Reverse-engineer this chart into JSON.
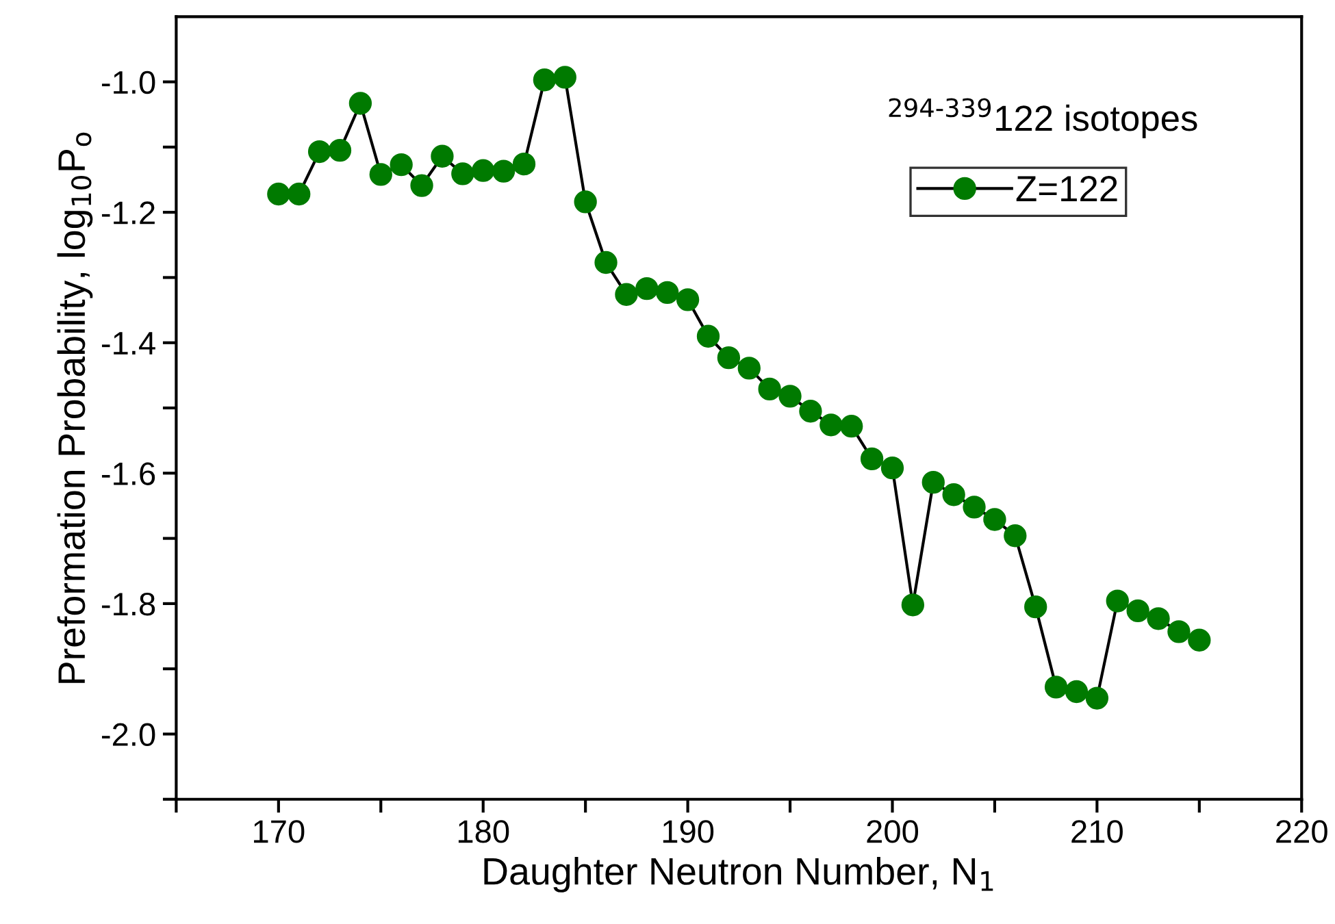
{
  "chart_data": {
    "type": "line",
    "xlabel": "Daughter Neutron Number, N$_{1}$",
    "ylabel": "Preformation Probability, log$_{10}$P$_{o}$",
    "annotations": [
      "$^{294-339}$122 isotopes"
    ],
    "x": [
      170,
      171,
      172,
      173,
      174,
      175,
      176,
      177,
      178,
      179,
      180,
      181,
      182,
      183,
      184,
      185,
      186,
      187,
      188,
      189,
      190,
      191,
      192,
      193,
      194,
      195,
      196,
      197,
      198,
      199,
      200,
      201,
      202,
      203,
      204,
      205,
      206,
      207,
      208,
      209,
      210,
      211,
      212,
      213,
      214,
      215
    ],
    "series": [
      {
        "name": "Z=122",
        "color": "#007a00",
        "values": [
          -1.172,
          -1.172,
          -1.107,
          -1.105,
          -1.033,
          -1.142,
          -1.127,
          -1.159,
          -1.114,
          -1.141,
          -1.136,
          -1.137,
          -1.126,
          -0.997,
          -0.993,
          -1.184,
          -1.277,
          -1.326,
          -1.317,
          -1.323,
          -1.334,
          -1.39,
          -1.423,
          -1.439,
          -1.471,
          -1.482,
          -1.505,
          -1.526,
          -1.528,
          -1.578,
          -1.592,
          -1.802,
          -1.614,
          -1.633,
          -1.652,
          -1.671,
          -1.696,
          -1.805,
          -1.928,
          -1.935,
          -1.945,
          -1.796,
          -1.811,
          -1.823,
          -1.843,
          -1.856
        ]
      }
    ],
    "marker": "circle",
    "line_style": "solid",
    "grid": false,
    "legend": "top right",
    "xlim": [
      165,
      220
    ],
    "xticks": [
      {
        "value": 165,
        "label": null
      },
      170,
      {
        "value": 175,
        "label": null
      },
      180,
      {
        "value": 185,
        "label": null
      },
      190,
      {
        "value": 195,
        "label": null
      },
      200,
      {
        "value": 205,
        "label": null
      },
      210,
      {
        "value": 215,
        "label": null
      },
      220
    ],
    "ylim": [
      -2.1,
      -0.9
    ],
    "yticks": [
      {
        "value": -2.1,
        "label": null
      },
      {
        "value": -2.0,
        "label": "-2.0"
      },
      {
        "value": -1.9,
        "label": null
      },
      {
        "value": -1.8,
        "label": "-1.8"
      },
      {
        "value": -1.7,
        "label": null
      },
      {
        "value": -1.6,
        "label": "-1.6"
      },
      {
        "value": -1.5,
        "label": null
      },
      {
        "value": -1.4,
        "label": "-1.4"
      },
      {
        "value": -1.3,
        "label": null
      },
      {
        "value": -1.2,
        "label": "-1.2"
      },
      {
        "value": -1.1,
        "label": null
      },
      {
        "value": -1.0,
        "label": "-1.0"
      }
    ]
  }
}
